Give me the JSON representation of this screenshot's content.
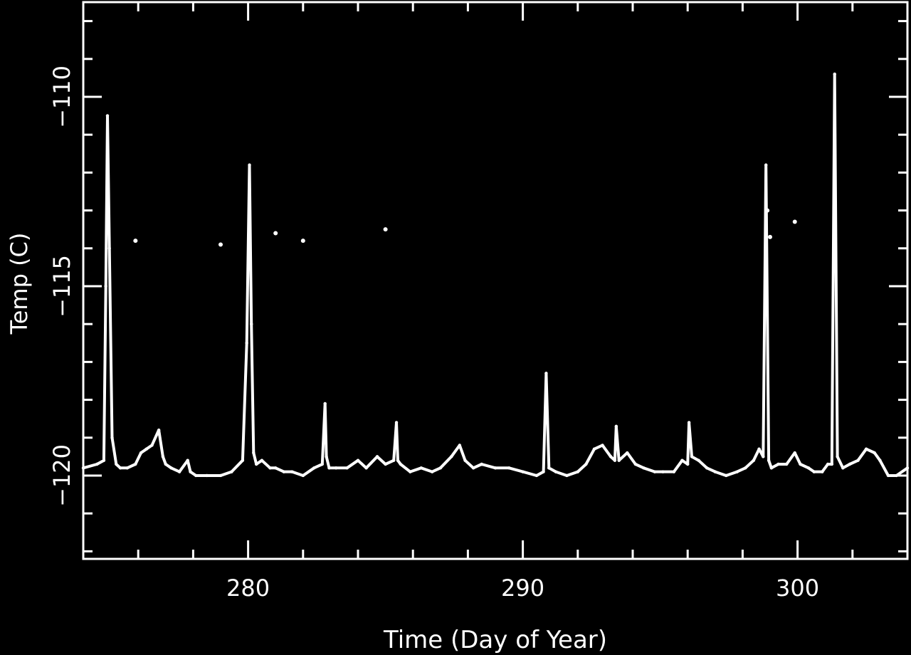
{
  "chart_data": {
    "type": "line",
    "title": "",
    "xlabel": "Time (Day of Year)",
    "ylabel": "Temp (C)",
    "xlim": [
      274,
      304
    ],
    "ylim": [
      -122.2,
      -107.5
    ],
    "x_ticks": [
      280,
      290,
      300
    ],
    "x_tick_labels": [
      "280",
      "290",
      "300"
    ],
    "y_ticks": [
      -110,
      -115,
      -120
    ],
    "y_tick_labels": [
      "−110",
      "−115",
      "−120"
    ],
    "grid": false,
    "legend": "none",
    "colors": {
      "background": "#000000",
      "foreground": "#ffffff"
    },
    "series": [
      {
        "x": [
          274.0,
          274.5,
          274.75,
          274.82,
          274.88,
          274.95,
          275.05,
          275.2,
          275.35,
          275.6,
          275.9,
          276.1,
          276.3,
          276.5,
          276.75,
          276.9,
          277.0,
          277.2,
          277.5,
          277.8,
          277.9,
          278.1,
          278.5,
          279.0,
          279.4,
          279.8,
          279.95,
          280.05,
          280.12,
          280.2,
          280.3,
          280.5,
          280.8,
          281.0,
          281.3,
          281.6,
          282.0,
          282.4,
          282.7,
          282.8,
          282.85,
          282.95,
          283.2,
          283.6,
          284.0,
          284.3,
          284.7,
          285.0,
          285.3,
          285.4,
          285.45,
          285.55,
          285.9,
          286.3,
          286.7,
          287.0,
          287.4,
          287.7,
          287.9,
          288.2,
          288.5,
          289.0,
          289.5,
          290.0,
          290.5,
          290.75,
          290.85,
          290.95,
          291.2,
          291.6,
          292.0,
          292.3,
          292.6,
          292.9,
          293.2,
          293.35,
          293.4,
          293.5,
          293.8,
          294.1,
          294.4,
          294.8,
          295.1,
          295.5,
          295.8,
          296.0,
          296.05,
          296.15,
          296.4,
          296.7,
          297.0,
          297.4,
          297.8,
          298.1,
          298.4,
          298.6,
          298.75,
          298.85,
          298.95,
          299.05,
          299.3,
          299.6,
          299.9,
          300.1,
          300.4,
          300.6,
          300.9,
          301.1,
          301.25,
          301.35,
          301.45,
          301.65,
          301.9,
          302.2,
          302.5,
          302.8,
          303.0,
          303.3,
          303.6,
          304.0
        ],
        "y": [
          -119.8,
          -119.7,
          -119.6,
          -115.0,
          -110.5,
          -114.0,
          -119.0,
          -119.7,
          -119.8,
          -119.8,
          -119.7,
          -119.4,
          -119.3,
          -119.2,
          -118.8,
          -119.5,
          -119.7,
          -119.8,
          -119.9,
          -119.6,
          -119.9,
          -120.0,
          -120.0,
          -120.0,
          -119.9,
          -119.6,
          -116.5,
          -111.8,
          -116.0,
          -119.4,
          -119.7,
          -119.6,
          -119.8,
          -119.8,
          -119.9,
          -119.9,
          -120.0,
          -119.8,
          -119.7,
          -118.1,
          -119.5,
          -119.8,
          -119.8,
          -119.8,
          -119.6,
          -119.8,
          -119.5,
          -119.7,
          -119.6,
          -118.6,
          -119.6,
          -119.7,
          -119.9,
          -119.8,
          -119.9,
          -119.8,
          -119.5,
          -119.2,
          -119.6,
          -119.8,
          -119.7,
          -119.8,
          -119.8,
          -119.9,
          -120.0,
          -119.9,
          -117.3,
          -119.8,
          -119.9,
          -120.0,
          -119.9,
          -119.7,
          -119.3,
          -119.2,
          -119.5,
          -119.6,
          -118.7,
          -119.6,
          -119.4,
          -119.7,
          -119.8,
          -119.9,
          -119.9,
          -119.9,
          -119.6,
          -119.7,
          -118.6,
          -119.5,
          -119.6,
          -119.8,
          -119.9,
          -120.0,
          -119.9,
          -119.8,
          -119.6,
          -119.3,
          -119.5,
          -111.8,
          -119.6,
          -119.8,
          -119.7,
          -119.7,
          -119.4,
          -119.7,
          -119.8,
          -119.9,
          -119.9,
          -119.7,
          -119.7,
          -109.4,
          -119.5,
          -119.8,
          -119.7,
          -119.6,
          -119.3,
          -119.4,
          -119.6,
          -120.0,
          -120.0,
          -119.8
        ]
      },
      {
        "x": [
          275.9,
          279.0,
          281.0,
          282.0,
          285.0,
          298.9,
          299.0,
          299.9
        ],
        "y": [
          -113.8,
          -113.9,
          -113.6,
          -113.8,
          -113.5,
          -113.0,
          -113.7,
          -113.3
        ]
      }
    ]
  }
}
